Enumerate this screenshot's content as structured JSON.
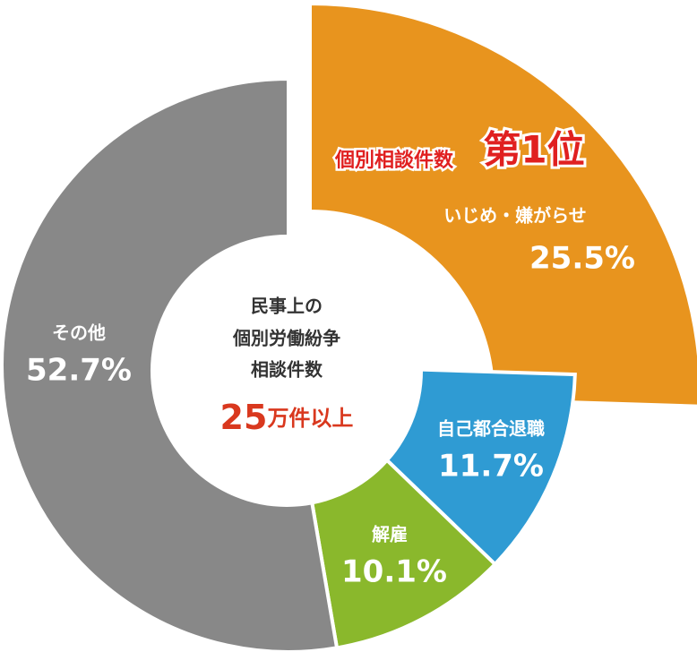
{
  "chart_data": {
    "type": "pie",
    "categories": [
      "いじめ・嫌がらせ",
      "自己都合退職",
      "解雇",
      "その他"
    ],
    "values": [
      25.5,
      11.7,
      10.1,
      52.7
    ],
    "value_labels": [
      "25.5%",
      "11.7%",
      "10.1%",
      "52.7%"
    ],
    "colors": [
      "#e8941e",
      "#2f9bd3",
      "#8ab82c",
      "#888888"
    ],
    "center_text": [
      "民事上の",
      "個別労働紛争",
      "相談件数"
    ],
    "center_total": {
      "number": "25",
      "unit": "万件以上"
    },
    "annotation": {
      "text": "個別相談件数",
      "rank": "第1位"
    }
  }
}
